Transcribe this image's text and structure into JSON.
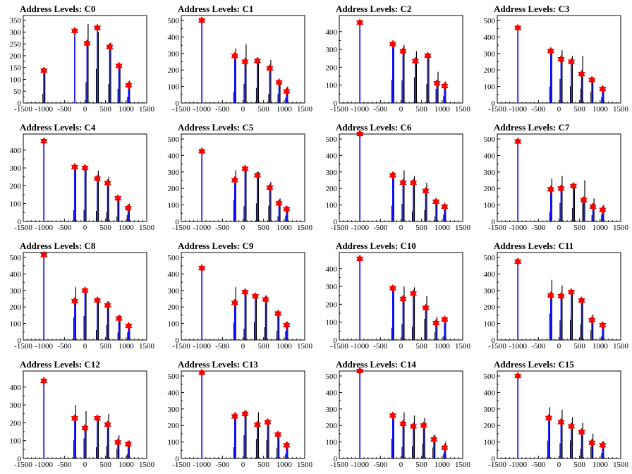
{
  "colors": {
    "main_line": "#0000ff",
    "minor_line": "#000000",
    "peak_marker": "#ff0000",
    "marker_outline": "#cc0000"
  },
  "chart_data": [
    {
      "type": "bar",
      "title": "Address Levels: C0",
      "xlim": [
        -1500,
        1500
      ],
      "ylim": [
        0,
        370
      ],
      "xticks": [
        -1500,
        -1000,
        -500,
        0,
        500,
        1000,
        1500
      ],
      "yticks": [
        0,
        50,
        100,
        150,
        200,
        250,
        300,
        350
      ],
      "peaks": [
        {
          "x": -1000,
          "y": 137
        },
        {
          "x": -250,
          "y": 305
        },
        {
          "x": 50,
          "y": 252
        },
        {
          "x": 300,
          "y": 318
        },
        {
          "x": 600,
          "y": 237
        },
        {
          "x": 825,
          "y": 157
        },
        {
          "x": 1060,
          "y": 75
        }
      ],
      "black_bars": [
        {
          "x": -1000,
          "y": 130
        },
        {
          "x": 50,
          "y": 335
        },
        {
          "x": 300,
          "y": 300
        },
        {
          "x": 600,
          "y": 255
        },
        {
          "x": 825,
          "y": 150
        },
        {
          "x": 1060,
          "y": 95
        }
      ]
    },
    {
      "type": "bar",
      "title": "Address Levels: C1",
      "xlim": [
        -1500,
        1500
      ],
      "ylim": [
        0,
        530
      ],
      "xticks": [
        -1500,
        -1000,
        -500,
        0,
        500,
        1000,
        1500
      ],
      "yticks": [
        0,
        100,
        200,
        300,
        400,
        500
      ],
      "peaks": [
        {
          "x": -1000,
          "y": 500
        },
        {
          "x": -200,
          "y": 285
        },
        {
          "x": 50,
          "y": 250
        },
        {
          "x": 350,
          "y": 255
        },
        {
          "x": 650,
          "y": 210
        },
        {
          "x": 875,
          "y": 125
        },
        {
          "x": 1060,
          "y": 70
        }
      ],
      "black_bars": [
        {
          "x": -200,
          "y": 330
        },
        {
          "x": 50,
          "y": 355
        },
        {
          "x": 350,
          "y": 270
        },
        {
          "x": 650,
          "y": 260
        },
        {
          "x": 875,
          "y": 130
        },
        {
          "x": 1060,
          "y": 100
        }
      ]
    },
    {
      "type": "bar",
      "title": "Address Levels: C2",
      "xlim": [
        -1500,
        1500
      ],
      "ylim": [
        0,
        490
      ],
      "xticks": [
        -1500,
        -1000,
        -500,
        0,
        500,
        1000,
        1500
      ],
      "yticks": [
        0,
        100,
        200,
        300,
        400
      ],
      "peaks": [
        {
          "x": -1000,
          "y": 450
        },
        {
          "x": -200,
          "y": 330
        },
        {
          "x": 50,
          "y": 290
        },
        {
          "x": 350,
          "y": 235
        },
        {
          "x": 650,
          "y": 265
        },
        {
          "x": 875,
          "y": 110
        },
        {
          "x": 1060,
          "y": 95
        }
      ],
      "black_bars": [
        {
          "x": -200,
          "y": 320
        },
        {
          "x": 50,
          "y": 325
        },
        {
          "x": 350,
          "y": 290
        },
        {
          "x": 650,
          "y": 260
        },
        {
          "x": 875,
          "y": 175
        },
        {
          "x": 1060,
          "y": 120
        }
      ]
    },
    {
      "type": "bar",
      "title": "Address Levels: C3",
      "xlim": [
        -1500,
        1500
      ],
      "ylim": [
        0,
        530
      ],
      "xticks": [
        -1500,
        -1000,
        -500,
        0,
        500,
        1000,
        1500
      ],
      "yticks": [
        0,
        100,
        200,
        300,
        400,
        500
      ],
      "peaks": [
        {
          "x": -1000,
          "y": 455
        },
        {
          "x": -200,
          "y": 315
        },
        {
          "x": 50,
          "y": 265
        },
        {
          "x": 300,
          "y": 250
        },
        {
          "x": 550,
          "y": 175
        },
        {
          "x": 800,
          "y": 140
        },
        {
          "x": 1060,
          "y": 85
        }
      ],
      "black_bars": [
        {
          "x": -200,
          "y": 325
        },
        {
          "x": 50,
          "y": 320
        },
        {
          "x": 300,
          "y": 285
        },
        {
          "x": 550,
          "y": 285
        },
        {
          "x": 800,
          "y": 145
        },
        {
          "x": 1060,
          "y": 100
        }
      ]
    },
    {
      "type": "bar",
      "title": "Address Levels: C4",
      "xlim": [
        -1500,
        1500
      ],
      "ylim": [
        0,
        490
      ],
      "xticks": [
        -1500,
        -1000,
        -500,
        0,
        500,
        1000,
        1500
      ],
      "yticks": [
        0,
        100,
        200,
        300,
        400
      ],
      "peaks": [
        {
          "x": -1000,
          "y": 450
        },
        {
          "x": -250,
          "y": 305
        },
        {
          "x": 0,
          "y": 300
        },
        {
          "x": 300,
          "y": 240
        },
        {
          "x": 550,
          "y": 215
        },
        {
          "x": 800,
          "y": 130
        },
        {
          "x": 1050,
          "y": 75
        }
      ],
      "black_bars": [
        {
          "x": -250,
          "y": 300
        },
        {
          "x": 0,
          "y": 300
        },
        {
          "x": 300,
          "y": 285
        },
        {
          "x": 550,
          "y": 250
        },
        {
          "x": 800,
          "y": 140
        },
        {
          "x": 1050,
          "y": 100
        }
      ]
    },
    {
      "type": "bar",
      "title": "Address Levels: C5",
      "xlim": [
        -1500,
        1500
      ],
      "ylim": [
        0,
        530
      ],
      "xticks": [
        -1500,
        -1000,
        -500,
        0,
        500,
        1000,
        1500
      ],
      "yticks": [
        0,
        100,
        200,
        300,
        400,
        500
      ],
      "peaks": [
        {
          "x": -1000,
          "y": 425
        },
        {
          "x": -200,
          "y": 250
        },
        {
          "x": 50,
          "y": 320
        },
        {
          "x": 350,
          "y": 280
        },
        {
          "x": 650,
          "y": 205
        },
        {
          "x": 875,
          "y": 110
        },
        {
          "x": 1060,
          "y": 75
        }
      ],
      "black_bars": [
        {
          "x": -200,
          "y": 310
        },
        {
          "x": 50,
          "y": 330
        },
        {
          "x": 350,
          "y": 300
        },
        {
          "x": 650,
          "y": 240
        },
        {
          "x": 875,
          "y": 140
        },
        {
          "x": 1060,
          "y": 90
        }
      ]
    },
    {
      "type": "bar",
      "title": "Address Levels: C6",
      "xlim": [
        -1500,
        1500
      ],
      "ylim": [
        0,
        530
      ],
      "xticks": [
        -1500,
        -1000,
        -500,
        0,
        500,
        1000,
        1500
      ],
      "yticks": [
        0,
        100,
        200,
        300,
        400,
        500
      ],
      "peaks": [
        {
          "x": -1000,
          "y": 530
        },
        {
          "x": -200,
          "y": 280
        },
        {
          "x": 50,
          "y": 235
        },
        {
          "x": 300,
          "y": 235
        },
        {
          "x": 600,
          "y": 185
        },
        {
          "x": 850,
          "y": 120
        },
        {
          "x": 1060,
          "y": 90
        }
      ],
      "black_bars": [
        {
          "x": -200,
          "y": 300
        },
        {
          "x": 50,
          "y": 310
        },
        {
          "x": 300,
          "y": 275
        },
        {
          "x": 600,
          "y": 235
        },
        {
          "x": 850,
          "y": 125
        },
        {
          "x": 1060,
          "y": 100
        }
      ]
    },
    {
      "type": "bar",
      "title": "Address Levels: C7",
      "xlim": [
        -1500,
        1500
      ],
      "ylim": [
        0,
        530
      ],
      "xticks": [
        -1500,
        -1000,
        -500,
        0,
        500,
        1000,
        1500
      ],
      "yticks": [
        0,
        100,
        200,
        300,
        400,
        500
      ],
      "peaks": [
        {
          "x": -1000,
          "y": 485
        },
        {
          "x": -200,
          "y": 195
        },
        {
          "x": 50,
          "y": 200
        },
        {
          "x": 350,
          "y": 215
        },
        {
          "x": 600,
          "y": 130
        },
        {
          "x": 825,
          "y": 90
        },
        {
          "x": 1060,
          "y": 70
        }
      ],
      "black_bars": [
        {
          "x": -200,
          "y": 260
        },
        {
          "x": 50,
          "y": 275
        },
        {
          "x": 350,
          "y": 215
        },
        {
          "x": 600,
          "y": 250
        },
        {
          "x": 825,
          "y": 140
        },
        {
          "x": 1060,
          "y": 100
        }
      ]
    },
    {
      "type": "bar",
      "title": "Address Levels: C8",
      "xlim": [
        -1500,
        1500
      ],
      "ylim": [
        0,
        530
      ],
      "xticks": [
        -1500,
        -1000,
        -500,
        0,
        500,
        1000,
        1500
      ],
      "yticks": [
        0,
        100,
        200,
        300,
        400,
        500
      ],
      "peaks": [
        {
          "x": -1000,
          "y": 515
        },
        {
          "x": -250,
          "y": 235
        },
        {
          "x": 0,
          "y": 300
        },
        {
          "x": 300,
          "y": 240
        },
        {
          "x": 550,
          "y": 210
        },
        {
          "x": 825,
          "y": 130
        },
        {
          "x": 1060,
          "y": 85
        }
      ],
      "black_bars": [
        {
          "x": -250,
          "y": 320
        },
        {
          "x": 0,
          "y": 310
        },
        {
          "x": 300,
          "y": 255
        },
        {
          "x": 550,
          "y": 235
        },
        {
          "x": 825,
          "y": 150
        },
        {
          "x": 1060,
          "y": 100
        }
      ]
    },
    {
      "type": "bar",
      "title": "Address Levels: C9",
      "xlim": [
        -1500,
        1500
      ],
      "ylim": [
        0,
        530
      ],
      "xticks": [
        -1500,
        -1000,
        -500,
        0,
        500,
        1000,
        1500
      ],
      "yticks": [
        0,
        100,
        200,
        300,
        400,
        500
      ],
      "peaks": [
        {
          "x": -1000,
          "y": 435
        },
        {
          "x": -200,
          "y": 225
        },
        {
          "x": 50,
          "y": 290
        },
        {
          "x": 300,
          "y": 265
        },
        {
          "x": 550,
          "y": 245
        },
        {
          "x": 850,
          "y": 160
        },
        {
          "x": 1060,
          "y": 90
        }
      ],
      "black_bars": [
        {
          "x": -200,
          "y": 320
        },
        {
          "x": 50,
          "y": 295
        },
        {
          "x": 300,
          "y": 275
        },
        {
          "x": 550,
          "y": 270
        },
        {
          "x": 850,
          "y": 170
        },
        {
          "x": 1060,
          "y": 110
        }
      ]
    },
    {
      "type": "bar",
      "title": "Address Levels: C10",
      "xlim": [
        -1500,
        1500
      ],
      "ylim": [
        0,
        490
      ],
      "xticks": [
        -1500,
        -1000,
        -500,
        0,
        500,
        1000,
        1500
      ],
      "yticks": [
        0,
        100,
        200,
        300,
        400
      ],
      "peaks": [
        {
          "x": -1000,
          "y": 455
        },
        {
          "x": -200,
          "y": 290
        },
        {
          "x": 50,
          "y": 230
        },
        {
          "x": 300,
          "y": 260
        },
        {
          "x": 600,
          "y": 180
        },
        {
          "x": 850,
          "y": 95
        },
        {
          "x": 1060,
          "y": 115
        }
      ],
      "black_bars": [
        {
          "x": -200,
          "y": 295
        },
        {
          "x": 50,
          "y": 300
        },
        {
          "x": 300,
          "y": 295
        },
        {
          "x": 600,
          "y": 245
        },
        {
          "x": 850,
          "y": 130
        },
        {
          "x": 1060,
          "y": 115
        }
      ]
    },
    {
      "type": "bar",
      "title": "Address Levels: C11",
      "xlim": [
        -1500,
        1500
      ],
      "ylim": [
        0,
        530
      ],
      "xticks": [
        -1500,
        -1000,
        -500,
        0,
        500,
        1000,
        1500
      ],
      "yticks": [
        0,
        100,
        200,
        300,
        400,
        500
      ],
      "peaks": [
        {
          "x": -1000,
          "y": 475
        },
        {
          "x": -200,
          "y": 270
        },
        {
          "x": 50,
          "y": 265
        },
        {
          "x": 300,
          "y": 290
        },
        {
          "x": 550,
          "y": 240
        },
        {
          "x": 800,
          "y": 120
        },
        {
          "x": 1060,
          "y": 90
        }
      ],
      "black_bars": [
        {
          "x": -200,
          "y": 365
        },
        {
          "x": 50,
          "y": 330
        },
        {
          "x": 300,
          "y": 300
        },
        {
          "x": 550,
          "y": 250
        },
        {
          "x": 800,
          "y": 155
        },
        {
          "x": 1060,
          "y": 100
        }
      ]
    },
    {
      "type": "bar",
      "title": "Address Levels: C12",
      "xlim": [
        -1500,
        1500
      ],
      "ylim": [
        0,
        490
      ],
      "xticks": [
        -1500,
        -1000,
        -500,
        0,
        500,
        1000,
        1500
      ],
      "yticks": [
        0,
        100,
        200,
        300,
        400
      ],
      "peaks": [
        {
          "x": -1000,
          "y": 435
        },
        {
          "x": -250,
          "y": 225
        },
        {
          "x": 0,
          "y": 170
        },
        {
          "x": 300,
          "y": 225
        },
        {
          "x": 550,
          "y": 190
        },
        {
          "x": 800,
          "y": 90
        },
        {
          "x": 1050,
          "y": 80
        }
      ],
      "black_bars": [
        {
          "x": -250,
          "y": 300
        },
        {
          "x": 0,
          "y": 265
        },
        {
          "x": 300,
          "y": 235
        },
        {
          "x": 550,
          "y": 250
        },
        {
          "x": 800,
          "y": 130
        },
        {
          "x": 1050,
          "y": 100
        }
      ]
    },
    {
      "type": "bar",
      "title": "Address Levels: C13",
      "xlim": [
        -1500,
        1500
      ],
      "ylim": [
        0,
        530
      ],
      "xticks": [
        -1500,
        -1000,
        -500,
        0,
        500,
        1000,
        1500
      ],
      "yticks": [
        0,
        100,
        200,
        300,
        400,
        500
      ],
      "peaks": [
        {
          "x": -1000,
          "y": 520
        },
        {
          "x": -200,
          "y": 255
        },
        {
          "x": 50,
          "y": 270
        },
        {
          "x": 350,
          "y": 205
        },
        {
          "x": 600,
          "y": 220
        },
        {
          "x": 850,
          "y": 145
        },
        {
          "x": 1060,
          "y": 80
        }
      ],
      "black_bars": [
        {
          "x": -200,
          "y": 280
        },
        {
          "x": 50,
          "y": 290
        },
        {
          "x": 350,
          "y": 280
        },
        {
          "x": 600,
          "y": 235
        },
        {
          "x": 850,
          "y": 150
        },
        {
          "x": 1060,
          "y": 100
        }
      ]
    },
    {
      "type": "bar",
      "title": "Address Levels: C14",
      "xlim": [
        -1500,
        1500
      ],
      "ylim": [
        0,
        530
      ],
      "xticks": [
        -1500,
        -1000,
        -500,
        0,
        500,
        1000,
        1500
      ],
      "yticks": [
        0,
        100,
        200,
        300,
        400,
        500
      ],
      "peaks": [
        {
          "x": -1000,
          "y": 530
        },
        {
          "x": -200,
          "y": 260
        },
        {
          "x": 50,
          "y": 210
        },
        {
          "x": 300,
          "y": 195
        },
        {
          "x": 550,
          "y": 200
        },
        {
          "x": 800,
          "y": 115
        },
        {
          "x": 1060,
          "y": 65
        }
      ],
      "black_bars": [
        {
          "x": -200,
          "y": 270
        },
        {
          "x": 50,
          "y": 280
        },
        {
          "x": 300,
          "y": 260
        },
        {
          "x": 550,
          "y": 245
        },
        {
          "x": 800,
          "y": 145
        },
        {
          "x": 1060,
          "y": 100
        }
      ]
    },
    {
      "type": "bar",
      "title": "Address Levels: C15",
      "xlim": [
        -1500,
        1500
      ],
      "ylim": [
        0,
        530
      ],
      "xticks": [
        -1500,
        -1000,
        -500,
        0,
        500,
        1000,
        1500
      ],
      "yticks": [
        0,
        100,
        200,
        300,
        400,
        500
      ],
      "peaks": [
        {
          "x": -1000,
          "y": 500
        },
        {
          "x": -250,
          "y": 245
        },
        {
          "x": 50,
          "y": 220
        },
        {
          "x": 300,
          "y": 195
        },
        {
          "x": 550,
          "y": 160
        },
        {
          "x": 800,
          "y": 95
        },
        {
          "x": 1060,
          "y": 80
        }
      ],
      "black_bars": [
        {
          "x": -250,
          "y": 310
        },
        {
          "x": 50,
          "y": 295
        },
        {
          "x": 300,
          "y": 250
        },
        {
          "x": 550,
          "y": 215
        },
        {
          "x": 800,
          "y": 150
        },
        {
          "x": 1060,
          "y": 105
        }
      ]
    }
  ]
}
